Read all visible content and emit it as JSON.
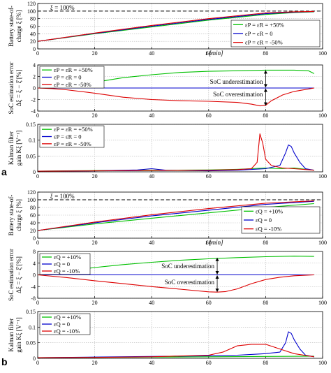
{
  "panel_labels": {
    "a": "a",
    "b": "b"
  },
  "chart_data": [
    {
      "type": "line",
      "panel": "a1",
      "ylabel_lines": [
        "Battery state-of-",
        "charge ξ [%]"
      ],
      "xlabel": "t [min]",
      "xlim": [
        0,
        100
      ],
      "ylim": [
        0,
        120
      ],
      "xticks": [
        0,
        20,
        40,
        60,
        80,
        100
      ],
      "yticks": [
        0,
        20,
        40,
        60,
        80,
        100,
        120
      ],
      "xtick_labels": [
        "0",
        "20",
        "40",
        "60",
        "80",
        "100"
      ],
      "ytick_labels": [
        "0",
        "20",
        "40",
        "60",
        "80",
        "100",
        "120"
      ],
      "grid": true,
      "legend_position": "right",
      "reference_line": {
        "y": 100,
        "label": "ξ = 100%"
      },
      "series": [
        {
          "name": "εP = εR = +50%",
          "color": "#00c000",
          "x": [
            0,
            20,
            40,
            60,
            80,
            90,
            97
          ],
          "y": [
            20,
            40,
            58,
            76,
            91,
            96,
            98
          ]
        },
        {
          "name": "εP = εR = 0",
          "color": "#0000cc",
          "x": [
            0,
            20,
            40,
            60,
            80,
            90,
            97
          ],
          "y": [
            20,
            41,
            60,
            78,
            93,
            97,
            98.5
          ]
        },
        {
          "name": "εP = εR = -50%",
          "color": "#dd0000",
          "x": [
            0,
            20,
            40,
            60,
            80,
            90,
            97
          ],
          "y": [
            20,
            42,
            62,
            80,
            95,
            98,
            99
          ]
        }
      ]
    },
    {
      "type": "line",
      "panel": "a2",
      "ylabel_lines": [
        "SoC estimation error",
        "Δξ = ξ − ξ̂ [%]"
      ],
      "xlim": [
        0,
        100
      ],
      "ylim": [
        -4,
        4
      ],
      "xticks": [
        0,
        20,
        40,
        60,
        80,
        100
      ],
      "yticks": [
        -4,
        -2,
        0,
        2,
        4
      ],
      "xtick_labels": [
        "0",
        "20",
        "40",
        "60",
        "80",
        "100"
      ],
      "ytick_labels": [
        "-4",
        "-2",
        "0",
        "2",
        "4"
      ],
      "grid": true,
      "legend_position": "top-left",
      "annotations": [
        {
          "text": "SoC underestimation",
          "x": 80,
          "y": 1.1
        },
        {
          "text": "SoC overestimation",
          "x": 80,
          "y": -1.1
        }
      ],
      "series": [
        {
          "name": "εP = εR = +50%",
          "color": "#00c000",
          "x": [
            0,
            5,
            10,
            20,
            30,
            40,
            50,
            60,
            70,
            80,
            90,
            95,
            97
          ],
          "y": [
            0,
            0.1,
            0.3,
            1.0,
            1.8,
            2.3,
            2.7,
            2.9,
            3.0,
            3.1,
            3.1,
            3.0,
            2.5
          ]
        },
        {
          "name": "εP = εR = 0",
          "color": "#0000cc",
          "x": [
            0,
            20,
            40,
            60,
            80,
            97
          ],
          "y": [
            0,
            0,
            0,
            0,
            0,
            0
          ]
        },
        {
          "name": "εP = εR = -50%",
          "color": "#dd0000",
          "x": [
            0,
            5,
            10,
            20,
            30,
            40,
            50,
            60,
            70,
            75,
            78,
            80,
            82,
            86,
            90,
            97
          ],
          "y": [
            0,
            -0.1,
            -0.3,
            -0.9,
            -1.6,
            -2.0,
            -2.2,
            -2.3,
            -2.5,
            -2.8,
            -3.1,
            -3.0,
            -2.2,
            -1.2,
            -0.6,
            0
          ]
        }
      ]
    },
    {
      "type": "line",
      "panel": "a3",
      "ylabel_lines": [
        "Kalman filter",
        "gain Kξ [V⁻¹]"
      ],
      "xlim": [
        0,
        100
      ],
      "ylim": [
        0,
        0.15
      ],
      "xticks": [
        0,
        20,
        40,
        60,
        80,
        100
      ],
      "yticks": [
        0,
        0.05,
        0.1,
        0.15
      ],
      "xtick_labels": [
        "0",
        "20",
        "40",
        "60",
        "80",
        "100"
      ],
      "ytick_labels": [
        "0",
        "0.05",
        "0.1",
        "0.15"
      ],
      "grid": true,
      "legend_position": "top-left",
      "series": [
        {
          "name": "εP = εR = +50%",
          "color": "#00c000",
          "x": [
            0,
            10,
            20,
            40,
            60,
            70,
            75,
            80,
            85,
            90,
            97
          ],
          "y": [
            0.002,
            0.003,
            0.004,
            0.005,
            0.006,
            0.008,
            0.01,
            0.012,
            0.01,
            0.012,
            0.005
          ]
        },
        {
          "name": "εP = εR = 0",
          "color": "#0000cc",
          "x": [
            0,
            20,
            35,
            40,
            45,
            60,
            70,
            80,
            85,
            87,
            88,
            89,
            90,
            92,
            94,
            97
          ],
          "y": [
            0.002,
            0.003,
            0.006,
            0.01,
            0.005,
            0.003,
            0.005,
            0.01,
            0.02,
            0.06,
            0.085,
            0.08,
            0.06,
            0.03,
            0.01,
            0.005
          ]
        },
        {
          "name": "εP = εR = -50%",
          "color": "#dd0000",
          "x": [
            0,
            20,
            40,
            60,
            70,
            75,
            77,
            78,
            79,
            80,
            82,
            86,
            90,
            97
          ],
          "y": [
            0.002,
            0.003,
            0.004,
            0.005,
            0.007,
            0.01,
            0.03,
            0.12,
            0.09,
            0.04,
            0.02,
            0.012,
            0.01,
            0.005
          ]
        }
      ]
    },
    {
      "type": "line",
      "panel": "b1",
      "ylabel_lines": [
        "Battery state-of-",
        "charge ξ [%]"
      ],
      "xlabel": "t [min]",
      "xlim": [
        0,
        100
      ],
      "ylim": [
        0,
        120
      ],
      "xticks": [
        0,
        20,
        40,
        60,
        80,
        100
      ],
      "yticks": [
        0,
        20,
        40,
        60,
        80,
        100,
        120
      ],
      "xtick_labels": [
        "0",
        "20",
        "40",
        "60",
        "80",
        "100"
      ],
      "ytick_labels": [
        "0",
        "20",
        "40",
        "60",
        "80",
        "100",
        "120"
      ],
      "grid": true,
      "legend_position": "right",
      "reference_line": {
        "y": 100,
        "label": "ξ = 100%"
      },
      "series": [
        {
          "name": "εQ = +10%",
          "color": "#00c000",
          "x": [
            0,
            20,
            40,
            60,
            80,
            97
          ],
          "y": [
            20,
            37,
            52,
            66,
            80,
            90
          ]
        },
        {
          "name": "εQ = 0",
          "color": "#0000cc",
          "x": [
            0,
            20,
            40,
            60,
            80,
            97
          ],
          "y": [
            20,
            40,
            58,
            73,
            88,
            96
          ]
        },
        {
          "name": "εQ = -10%",
          "color": "#dd0000",
          "x": [
            0,
            20,
            40,
            60,
            80,
            97
          ],
          "y": [
            20,
            42,
            61,
            77,
            91,
            97
          ]
        }
      ]
    },
    {
      "type": "line",
      "panel": "b2",
      "ylabel_lines": [
        "SoC estimation error",
        "Δξ = ξ − ξ̂ [%]"
      ],
      "xlim": [
        0,
        100
      ],
      "ylim": [
        -8,
        8
      ],
      "xticks": [
        0,
        20,
        40,
        60,
        80,
        100
      ],
      "yticks": [
        -8,
        -4,
        0,
        4,
        8
      ],
      "xtick_labels": [
        "0",
        "20",
        "40",
        "60",
        "80",
        "100"
      ],
      "ytick_labels": [
        "-8",
        "-4",
        "0",
        "4",
        "8"
      ],
      "grid": true,
      "legend_position": "top-left",
      "annotations": [
        {
          "text": "SoC underestimation",
          "x": 63,
          "y": 3.0
        },
        {
          "text": "SoC overestimation",
          "x": 63,
          "y": -2.5
        }
      ],
      "series": [
        {
          "name": "εQ = +10%",
          "color": "#00c000",
          "x": [
            0,
            10,
            20,
            30,
            40,
            50,
            60,
            70,
            80,
            90,
            97
          ],
          "y": [
            0,
            1.3,
            2.5,
            3.5,
            4.3,
            5.0,
            5.5,
            5.9,
            6.2,
            6.4,
            6.3
          ]
        },
        {
          "name": "εQ = 0",
          "color": "#0000cc",
          "x": [
            0,
            20,
            40,
            60,
            80,
            97
          ],
          "y": [
            0,
            0,
            0,
            0,
            0,
            0
          ]
        },
        {
          "name": "εQ = -10%",
          "color": "#dd0000",
          "x": [
            0,
            10,
            20,
            30,
            40,
            50,
            60,
            63,
            66,
            70,
            75,
            80,
            85,
            90,
            97
          ],
          "y": [
            0,
            -0.9,
            -2.0,
            -3.0,
            -4.0,
            -4.9,
            -5.8,
            -5.9,
            -5.7,
            -4.8,
            -3.0,
            -1.6,
            -0.8,
            -0.3,
            0
          ]
        }
      ]
    },
    {
      "type": "line",
      "panel": "b3",
      "ylabel_lines": [
        "Kalman filter",
        "gain Kξ [V⁻¹]"
      ],
      "xlim": [
        0,
        100
      ],
      "ylim": [
        0,
        0.15
      ],
      "xticks": [
        0,
        20,
        40,
        60,
        80,
        100
      ],
      "yticks": [
        0,
        0.05,
        0.1,
        0.15
      ],
      "xtick_labels": [
        "0",
        "20",
        "40",
        "60",
        "80",
        "100"
      ],
      "ytick_labels": [
        "0",
        "0.05",
        "0.1",
        "0.15"
      ],
      "grid": true,
      "legend_position": "top-left",
      "series": [
        {
          "name": "εQ = +10%",
          "color": "#00c000",
          "x": [
            0,
            20,
            40,
            60,
            80,
            97
          ],
          "y": [
            0.002,
            0.003,
            0.004,
            0.005,
            0.006,
            0.007
          ]
        },
        {
          "name": "εQ = 0",
          "color": "#0000cc",
          "x": [
            0,
            20,
            40,
            60,
            70,
            80,
            85,
            87,
            88,
            89,
            90,
            92,
            94,
            97
          ],
          "y": [
            0.002,
            0.004,
            0.006,
            0.008,
            0.01,
            0.015,
            0.02,
            0.05,
            0.085,
            0.08,
            0.06,
            0.03,
            0.01,
            0.005
          ]
        },
        {
          "name": "εQ = -10%",
          "color": "#dd0000",
          "x": [
            0,
            20,
            40,
            60,
            65,
            70,
            75,
            80,
            85,
            90,
            97
          ],
          "y": [
            0.002,
            0.003,
            0.005,
            0.01,
            0.02,
            0.04,
            0.045,
            0.045,
            0.03,
            0.015,
            0.005
          ]
        }
      ]
    }
  ]
}
